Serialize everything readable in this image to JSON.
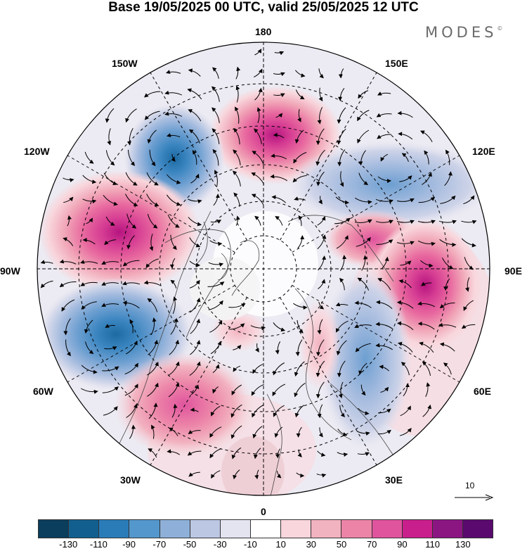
{
  "title": "Base 19/05/2025 00 UTC, valid 25/05/2025 12 UTC",
  "brand": "MODES",
  "brand_mark": "©",
  "longitude_labels": {
    "lon_180": "180",
    "lon_150e": "150E",
    "lon_120e": "120E",
    "lon_90e": "90E",
    "lon_60e": "60E",
    "lon_30e": "30E",
    "lon_0": "0",
    "lon_30w": "30W",
    "lon_60w": "60W",
    "lon_90w": "90W",
    "lon_120w": "120W",
    "lon_150w": "150W"
  },
  "reference_vector": {
    "label": "10"
  },
  "colorbar": {
    "colors": [
      "#0b3d5c",
      "#125f8f",
      "#2a7cb8",
      "#5497cc",
      "#8eb0d8",
      "#bcc7e3",
      "#e4e3f0",
      "#ffffff",
      "#f8d6dc",
      "#f2b3c0",
      "#ec84a8",
      "#e0549e",
      "#c91f8c",
      "#8b1682",
      "#5a0a6e"
    ],
    "ticks": [
      "-130",
      "-110",
      "-90",
      "-70",
      "-50",
      "-30",
      "-10",
      "10",
      "30",
      "50",
      "70",
      "90",
      "110",
      "130"
    ]
  },
  "anomaly_centers": [
    {
      "sign": "negative",
      "lon_deg": 215,
      "lat_deg": 55,
      "value": -90
    },
    {
      "sign": "positive",
      "lon_deg": 172,
      "lat_deg": 54,
      "value": 90
    },
    {
      "sign": "negative",
      "lon_deg": 120,
      "lat_deg": 45,
      "value": -50
    },
    {
      "sign": "positive",
      "lon_deg": 253,
      "lat_deg": 45,
      "value": 110
    },
    {
      "sign": "positive",
      "lon_deg": 105,
      "lat_deg": 55,
      "value": 70
    },
    {
      "sign": "positive",
      "lon_deg": 88,
      "lat_deg": 40,
      "value": 90
    },
    {
      "sign": "negative",
      "lon_deg": 297,
      "lat_deg": 40,
      "value": -90
    },
    {
      "sign": "positive",
      "lon_deg": 333,
      "lat_deg": 38,
      "value": 50
    },
    {
      "sign": "negative",
      "lon_deg": 45,
      "lat_deg": 45,
      "value": -50
    },
    {
      "sign": "positive",
      "lon_deg": 20,
      "lat_deg": 55,
      "value": 30
    },
    {
      "sign": "positive",
      "lon_deg": 352,
      "lat_deg": 20,
      "value": 30
    }
  ]
}
